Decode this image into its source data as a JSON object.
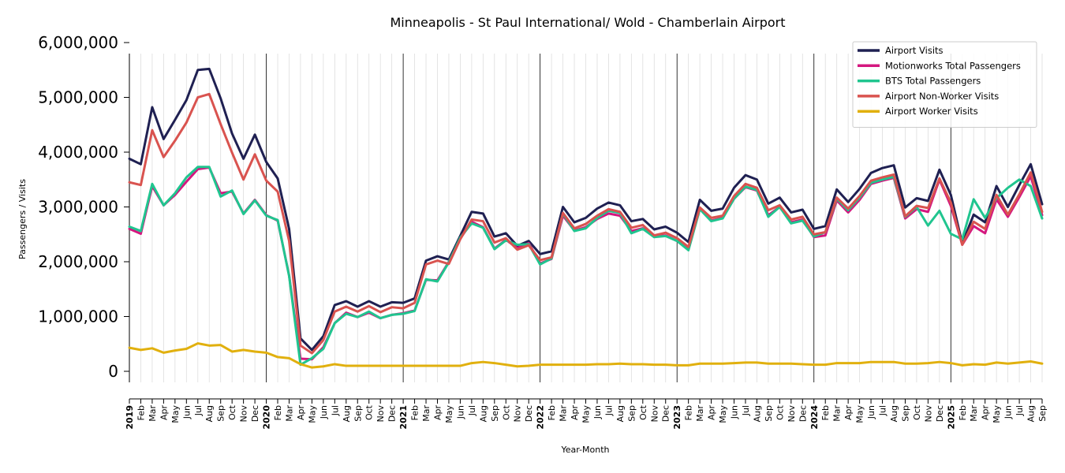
{
  "chart_data": {
    "type": "line",
    "title": "Minneapolis - St Paul International/ Wold - Chamberlain Airport",
    "xlabel": "Year-Month",
    "ylabel": "Passengers / Visits",
    "ylim": [
      0,
      6000000
    ],
    "yticks": [
      "0",
      "1,000,000",
      "2,000,000",
      "3,000,000",
      "4,000,000",
      "5,000,000",
      "6,000,000"
    ],
    "legend_position": "top-right",
    "grid": "vertical monthly lines; darker lines at each January",
    "x": [
      "2019",
      "Feb",
      "Mar",
      "Apr",
      "May",
      "Jun",
      "Jul",
      "Aug",
      "Sep",
      "Oct",
      "Nov",
      "Dec",
      "2020",
      "Feb",
      "Mar",
      "Apr",
      "May",
      "Jun",
      "Jul",
      "Aug",
      "Sep",
      "Oct",
      "Nov",
      "Dec",
      "2021",
      "Feb",
      "Mar",
      "Apr",
      "May",
      "Jun",
      "Jul",
      "Aug",
      "Sep",
      "Oct",
      "Nov",
      "Dec",
      "2022",
      "Feb",
      "Mar",
      "Apr",
      "May",
      "Jun",
      "Jul",
      "Aug",
      "Sep",
      "Oct",
      "Nov",
      "Dec",
      "2023",
      "Feb",
      "Mar",
      "Apr",
      "May",
      "Jun",
      "Jul",
      "Aug",
      "Sep",
      "Oct",
      "Nov",
      "Dec",
      "2024",
      "Feb",
      "Mar",
      "Apr",
      "May",
      "Jun",
      "Jul",
      "Aug",
      "Sep",
      "Oct",
      "Nov",
      "Dec",
      "2025",
      "Feb",
      "Mar",
      "Apr",
      "May",
      "Jun",
      "Jul",
      "Aug",
      "Sep"
    ],
    "series": [
      {
        "name": "Airport Visits",
        "color": "#1f2052",
        "values": [
          3880000,
          3780000,
          4820000,
          4240000,
          4590000,
          4950000,
          5500000,
          5520000,
          4980000,
          4340000,
          3880000,
          4320000,
          3820000,
          3520000,
          2600000,
          600000,
          390000,
          640000,
          1210000,
          1280000,
          1180000,
          1280000,
          1180000,
          1260000,
          1250000,
          1330000,
          2020000,
          2100000,
          2040000,
          2470000,
          2910000,
          2880000,
          2460000,
          2520000,
          2290000,
          2380000,
          2140000,
          2190000,
          3000000,
          2720000,
          2800000,
          2970000,
          3080000,
          3030000,
          2740000,
          2780000,
          2590000,
          2640000,
          2530000,
          2360000,
          3130000,
          2930000,
          2970000,
          3350000,
          3580000,
          3500000,
          3060000,
          3170000,
          2900000,
          2950000,
          2600000,
          2650000,
          3320000,
          3090000,
          3330000,
          3620000,
          3710000,
          3760000,
          2990000,
          3160000,
          3110000,
          3680000,
          3220000,
          2330000,
          2860000,
          2720000,
          3380000,
          3000000,
          3400000,
          3780000,
          3050000
        ]
      },
      {
        "name": "Motionworks Total Passengers",
        "color": "#d4177f",
        "values": [
          2600000,
          2510000,
          3380000,
          3030000,
          3220000,
          3460000,
          3690000,
          3720000,
          3250000,
          3280000,
          2880000,
          3130000,
          2850000,
          2750000,
          1750000,
          230000,
          220000,
          440000,
          880000,
          1070000,
          990000,
          1070000,
          970000,
          1030000,
          1060000,
          1110000,
          1670000,
          1660000,
          2000000,
          2420000,
          2730000,
          2630000,
          2240000,
          2400000,
          2250000,
          2340000,
          1970000,
          2050000,
          2840000,
          2570000,
          2630000,
          2780000,
          2880000,
          2840000,
          2560000,
          2610000,
          2460000,
          2480000,
          2380000,
          2220000,
          2970000,
          2750000,
          2800000,
          3150000,
          3360000,
          3300000,
          2850000,
          3000000,
          2720000,
          2770000,
          2450000,
          2480000,
          3120000,
          2900000,
          3130000,
          3420000,
          3480000,
          3530000,
          2790000,
          2960000,
          2910000,
          3500000,
          3020000,
          2310000,
          2650000,
          2520000,
          3140000,
          2820000,
          3180000,
          3560000,
          2850000
        ]
      },
      {
        "name": "BTS Total Passengers",
        "color": "#20c58f",
        "values": [
          2640000,
          2560000,
          3420000,
          3030000,
          3250000,
          3540000,
          3730000,
          3730000,
          3190000,
          3300000,
          2870000,
          3120000,
          2840000,
          2760000,
          1740000,
          120000,
          240000,
          410000,
          880000,
          1050000,
          990000,
          1090000,
          970000,
          1030000,
          1050000,
          1100000,
          1680000,
          1640000,
          1990000,
          2440000,
          2700000,
          2620000,
          2230000,
          2390000,
          2310000,
          2320000,
          1950000,
          2060000,
          2880000,
          2560000,
          2610000,
          2800000,
          2930000,
          2890000,
          2520000,
          2600000,
          2450000,
          2470000,
          2380000,
          2210000,
          2960000,
          2740000,
          2790000,
          3150000,
          3370000,
          3310000,
          2820000,
          3000000,
          2700000,
          2750000,
          2460000,
          2540000,
          3150000,
          2940000,
          3170000,
          3440000,
          3500000,
          3550000,
          2820000,
          3000000,
          2660000,
          2930000,
          2510000,
          2410000,
          3140000,
          2800000,
          3160000,
          3350000,
          3500000,
          3380000,
          2790000
        ]
      },
      {
        "name": "Airport Non-Worker Visits",
        "color": "#d9534f",
        "values": [
          3450000,
          3400000,
          4400000,
          3910000,
          4210000,
          4540000,
          5000000,
          5060000,
          4510000,
          3990000,
          3500000,
          3960000,
          3480000,
          3280000,
          2380000,
          470000,
          330000,
          570000,
          1090000,
          1180000,
          1090000,
          1190000,
          1080000,
          1170000,
          1150000,
          1250000,
          1950000,
          2020000,
          1960000,
          2410000,
          2770000,
          2740000,
          2350000,
          2430000,
          2220000,
          2300000,
          2030000,
          2080000,
          2890000,
          2610000,
          2690000,
          2840000,
          2960000,
          2910000,
          2620000,
          2670000,
          2480000,
          2530000,
          2430000,
          2270000,
          2990000,
          2800000,
          2840000,
          3200000,
          3420000,
          3350000,
          2940000,
          3030000,
          2770000,
          2820000,
          2500000,
          2540000,
          3170000,
          2970000,
          3200000,
          3480000,
          3540000,
          3590000,
          2830000,
          3020000,
          2980000,
          3520000,
          3080000,
          2310000,
          2730000,
          2600000,
          3220000,
          2860000,
          3230000,
          3630000,
          2910000
        ]
      },
      {
        "name": "Airport Worker Visits",
        "color": "#e1b00e",
        "values": [
          430000,
          390000,
          420000,
          340000,
          380000,
          410000,
          510000,
          470000,
          480000,
          360000,
          390000,
          360000,
          340000,
          260000,
          240000,
          130000,
          70000,
          90000,
          130000,
          100000,
          100000,
          100000,
          100000,
          100000,
          100000,
          100000,
          100000,
          100000,
          100000,
          100000,
          150000,
          170000,
          150000,
          120000,
          90000,
          100000,
          120000,
          120000,
          120000,
          120000,
          120000,
          130000,
          130000,
          140000,
          130000,
          130000,
          120000,
          120000,
          110000,
          110000,
          140000,
          140000,
          140000,
          150000,
          160000,
          160000,
          140000,
          140000,
          140000,
          130000,
          120000,
          120000,
          150000,
          150000,
          150000,
          170000,
          170000,
          170000,
          140000,
          140000,
          150000,
          170000,
          150000,
          110000,
          130000,
          120000,
          160000,
          140000,
          160000,
          180000,
          140000
        ]
      }
    ]
  }
}
